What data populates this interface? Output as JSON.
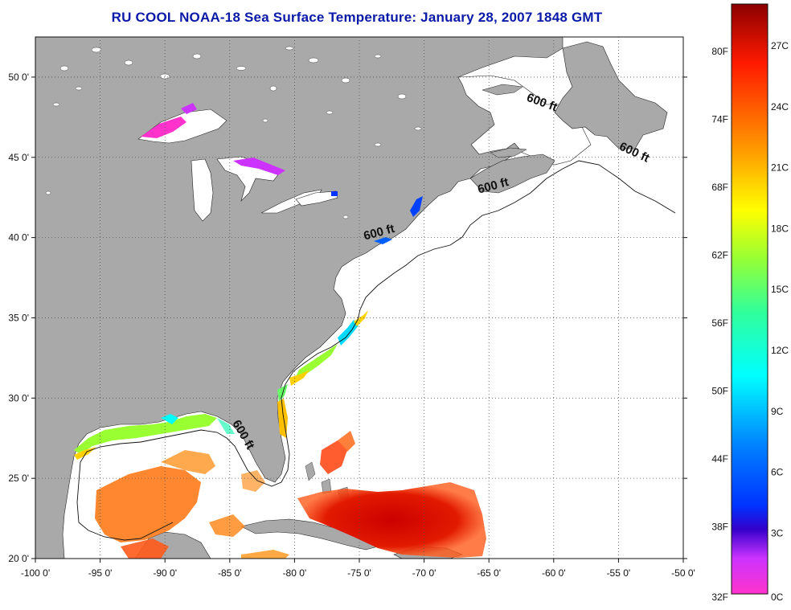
{
  "title": "RU COOL  NOAA-18  Sea Surface Temperature:  January 28, 2007 1848 GMT",
  "map": {
    "lon_range": [
      -100,
      -50
    ],
    "lat_range": [
      20,
      52.5
    ],
    "lon_ticks": [
      "-100 0'",
      "-95 0'",
      "-90 0'",
      "-85 0'",
      "-80 0'",
      "-75 0'",
      "-70 0'",
      "-65 0'",
      "-60 0'",
      "-55 0'",
      "-50 0'"
    ],
    "lat_ticks": [
      "50 0'",
      "45 0'",
      "40 0'",
      "35 0'",
      "30 0'",
      "25 0'",
      "20 0'"
    ],
    "grid": true,
    "land_color": "#a9a9a9",
    "contour_labels": [
      {
        "text": "600 ft",
        "lon": -61.0,
        "lat": 48.2,
        "angle": 20
      },
      {
        "text": "600 ft",
        "lon": -53.9,
        "lat": 45.1,
        "angle": 25
      },
      {
        "text": "600 ft",
        "lon": -64.6,
        "lat": 43.0,
        "angle": -15
      },
      {
        "text": "600 ft",
        "lon": -73.4,
        "lat": 40.1,
        "angle": -15
      },
      {
        "text": "600 ft",
        "lon": -84.2,
        "lat": 27.6,
        "angle": 60
      }
    ]
  },
  "colorbar": {
    "left_labels": [
      "80F",
      "74F",
      "68F",
      "62F",
      "56F",
      "50F",
      "44F",
      "38F",
      "32F"
    ],
    "right_labels": [
      "27C",
      "24C",
      "21C",
      "18C",
      "15C",
      "12C",
      "9C",
      "6C",
      "3C",
      "0C"
    ],
    "colors": {
      "top": "#8b0000",
      "red": "#ff1a00",
      "orange": "#ff8c00",
      "yellow": "#ffff00",
      "green": "#66ff33",
      "cyan": "#00ffff",
      "blue": "#0033ff",
      "purple": "#9900ff",
      "magenta": "#ff33cc"
    }
  }
}
